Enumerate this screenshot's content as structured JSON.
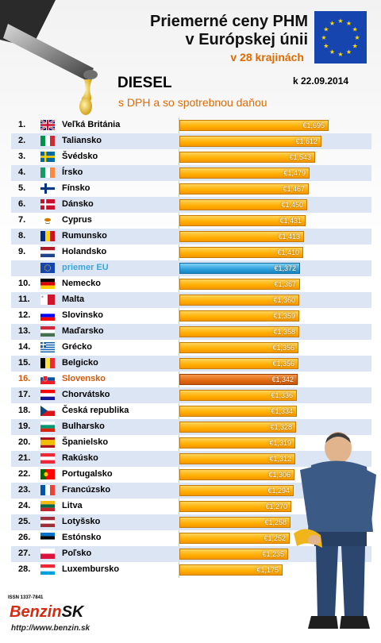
{
  "header": {
    "title_line1": "Priemerné ceny PHM",
    "title_line2": "v Európskej únii",
    "subtitle": "v 28 krajinách",
    "fuel": "DIESEL",
    "date": "k 22.09.2014",
    "tax_note": "s DPH a so spotrebnou daňou"
  },
  "footer": {
    "issn": "ISSN 1337-7841",
    "brand_main": "Benzin",
    "brand_suffix": "SK",
    "url": "http://www.benzin.sk"
  },
  "chart_data": {
    "type": "bar",
    "orientation": "horizontal",
    "title": "Priemerné ceny PHM v Európskej únii",
    "unit": "€",
    "xlim": [
      0,
      1.695
    ],
    "rows": [
      {
        "rank": "1.",
        "country": "Veľká Británia",
        "value": 1.695,
        "label": "€1,695",
        "flag": "uk"
      },
      {
        "rank": "2.",
        "country": "Taliansko",
        "value": 1.612,
        "label": "€1,612",
        "flag": "it"
      },
      {
        "rank": "3.",
        "country": "Švédsko",
        "value": 1.543,
        "label": "€1,543",
        "flag": "se"
      },
      {
        "rank": "4.",
        "country": "Írsko",
        "value": 1.479,
        "label": "€1,479",
        "flag": "ie"
      },
      {
        "rank": "5.",
        "country": "Fínsko",
        "value": 1.467,
        "label": "€1,467",
        "flag": "fi"
      },
      {
        "rank": "6.",
        "country": "Dánsko",
        "value": 1.45,
        "label": "€1,450",
        "flag": "dk"
      },
      {
        "rank": "7.",
        "country": "Cyprus",
        "value": 1.431,
        "label": "€1,431",
        "flag": "cy"
      },
      {
        "rank": "8.",
        "country": "Rumunsko",
        "value": 1.413,
        "label": "€1,413",
        "flag": "ro"
      },
      {
        "rank": "9.",
        "country": "Holandsko",
        "value": 1.41,
        "label": "€1,410",
        "flag": "nl"
      },
      {
        "rank": "",
        "country": "priemer EU",
        "value": 1.372,
        "label": "€1,372",
        "flag": "eu",
        "kind": "avg"
      },
      {
        "rank": "10.",
        "country": "Nemecko",
        "value": 1.367,
        "label": "€1,367",
        "flag": "de"
      },
      {
        "rank": "11.",
        "country": "Malta",
        "value": 1.36,
        "label": "€1,360",
        "flag": "mt"
      },
      {
        "rank": "12.",
        "country": "Slovinsko",
        "value": 1.359,
        "label": "€1,359",
        "flag": "si"
      },
      {
        "rank": "13.",
        "country": "Maďarsko",
        "value": 1.358,
        "label": "€1,358",
        "flag": "hu"
      },
      {
        "rank": "14.",
        "country": "Grécko",
        "value": 1.356,
        "label": "€1,356",
        "flag": "gr"
      },
      {
        "rank": "15.",
        "country": "Belgicko",
        "value": 1.356,
        "label": "€1,356",
        "flag": "be"
      },
      {
        "rank": "16.",
        "country": "Slovensko",
        "value": 1.342,
        "label": "€1,342",
        "flag": "sk",
        "kind": "hl"
      },
      {
        "rank": "17.",
        "country": "Chorvátsko",
        "value": 1.336,
        "label": "€1,336",
        "flag": "hr"
      },
      {
        "rank": "18.",
        "country": "Česká republika",
        "value": 1.334,
        "label": "€1,334",
        "flag": "cz"
      },
      {
        "rank": "19.",
        "country": "Bulharsko",
        "value": 1.328,
        "label": "€1,328",
        "flag": "bg"
      },
      {
        "rank": "20.",
        "country": "Španielsko",
        "value": 1.319,
        "label": "€1,319",
        "flag": "es"
      },
      {
        "rank": "21.",
        "country": "Rakúsko",
        "value": 1.312,
        "label": "€1,312",
        "flag": "at"
      },
      {
        "rank": "22.",
        "country": "Portugalsko",
        "value": 1.306,
        "label": "€1,306",
        "flag": "pt"
      },
      {
        "rank": "23.",
        "country": "Francúzsko",
        "value": 1.294,
        "label": "€1,294",
        "flag": "fr"
      },
      {
        "rank": "24.",
        "country": "Litva",
        "value": 1.27,
        "label": "€1,270",
        "flag": "lt"
      },
      {
        "rank": "25.",
        "country": "Lotyšsko",
        "value": 1.258,
        "label": "€1,258",
        "flag": "lv"
      },
      {
        "rank": "26.",
        "country": "Estónsko",
        "value": 1.252,
        "label": "€1,252",
        "flag": "ee"
      },
      {
        "rank": "27.",
        "country": "Poľsko",
        "value": 1.235,
        "label": "€1,235",
        "flag": "pl"
      },
      {
        "rank": "28.",
        "country": "Luxembursko",
        "value": 1.175,
        "label": "€1,175",
        "flag": "lu"
      }
    ]
  },
  "colors": {
    "bar": "#ffae00",
    "avg_bar": "#2e9fd9",
    "highlight_bar": "#e16a12",
    "row_alt": "#dbe5f3",
    "accent_text": "#e06a00"
  }
}
